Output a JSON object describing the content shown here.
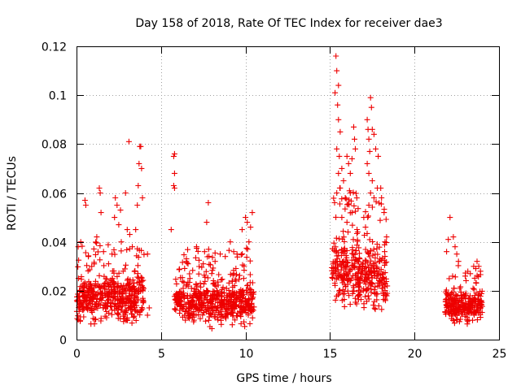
{
  "chart_data": {
    "type": "scatter",
    "title": "Day 158 of 2018, Rate Of TEC Index for receiver dae3",
    "xlabel": "GPS time / hours",
    "ylabel": "ROTI / TECUs",
    "xlim": [
      0,
      25
    ],
    "ylim": [
      0,
      0.12
    ],
    "x_ticks": [
      "0",
      "5",
      "10",
      "15",
      "20",
      "25"
    ],
    "y_ticks": [
      "0",
      "0.02",
      "0.04",
      "0.06",
      "0.08",
      "0.1",
      "0.12"
    ],
    "x_tick_values": [
      0,
      5,
      10,
      15,
      20,
      25
    ],
    "y_tick_values": [
      0,
      0.02,
      0.04,
      0.06,
      0.08,
      0.1,
      0.12
    ],
    "grid": true,
    "marker": "plus",
    "color": "#ee0000",
    "dense_bands": [
      {
        "x_start": 0.0,
        "x_end": 4.0,
        "y_min": 0.004,
        "y_max": 0.028
      },
      {
        "x_start": 5.8,
        "x_end": 6.2,
        "y_min": 0.008,
        "y_max": 0.022
      },
      {
        "x_start": 6.2,
        "x_end": 10.5,
        "y_min": 0.003,
        "y_max": 0.026
      },
      {
        "x_start": 15.1,
        "x_end": 16.6,
        "y_min": 0.01,
        "y_max": 0.045
      },
      {
        "x_start": 16.6,
        "x_end": 18.4,
        "y_min": 0.007,
        "y_max": 0.04
      },
      {
        "x_start": 21.8,
        "x_end": 24.0,
        "y_min": 0.005,
        "y_max": 0.022
      }
    ],
    "points": [
      {
        "x": 0.1,
        "y": 0.038
      },
      {
        "x": 0.25,
        "y": 0.04
      },
      {
        "x": 0.5,
        "y": 0.057
      },
      {
        "x": 0.55,
        "y": 0.055
      },
      {
        "x": 0.7,
        "y": 0.034
      },
      {
        "x": 0.9,
        "y": 0.03
      },
      {
        "x": 1.2,
        "y": 0.042
      },
      {
        "x": 1.35,
        "y": 0.062
      },
      {
        "x": 1.4,
        "y": 0.06
      },
      {
        "x": 1.45,
        "y": 0.052
      },
      {
        "x": 1.6,
        "y": 0.036
      },
      {
        "x": 1.9,
        "y": 0.031
      },
      {
        "x": 2.1,
        "y": 0.035
      },
      {
        "x": 2.25,
        "y": 0.05
      },
      {
        "x": 2.3,
        "y": 0.058
      },
      {
        "x": 2.4,
        "y": 0.055
      },
      {
        "x": 2.5,
        "y": 0.047
      },
      {
        "x": 2.6,
        "y": 0.053
      },
      {
        "x": 2.65,
        "y": 0.04
      },
      {
        "x": 2.9,
        "y": 0.06
      },
      {
        "x": 3.0,
        "y": 0.045
      },
      {
        "x": 3.1,
        "y": 0.081
      },
      {
        "x": 3.15,
        "y": 0.043
      },
      {
        "x": 3.3,
        "y": 0.038
      },
      {
        "x": 3.5,
        "y": 0.045
      },
      {
        "x": 3.6,
        "y": 0.055
      },
      {
        "x": 3.65,
        "y": 0.063
      },
      {
        "x": 3.7,
        "y": 0.072
      },
      {
        "x": 3.75,
        "y": 0.079
      },
      {
        "x": 3.8,
        "y": 0.079
      },
      {
        "x": 3.85,
        "y": 0.07
      },
      {
        "x": 3.9,
        "y": 0.058
      },
      {
        "x": 4.2,
        "y": 0.035
      },
      {
        "x": 4.2,
        "y": 0.01
      },
      {
        "x": 4.3,
        "y": 0.013
      },
      {
        "x": 5.6,
        "y": 0.045
      },
      {
        "x": 5.75,
        "y": 0.075
      },
      {
        "x": 5.8,
        "y": 0.076
      },
      {
        "x": 5.8,
        "y": 0.068
      },
      {
        "x": 5.75,
        "y": 0.063
      },
      {
        "x": 5.8,
        "y": 0.062
      },
      {
        "x": 6.5,
        "y": 0.032
      },
      {
        "x": 6.6,
        "y": 0.031
      },
      {
        "x": 7.1,
        "y": 0.038
      },
      {
        "x": 7.5,
        "y": 0.031
      },
      {
        "x": 7.8,
        "y": 0.056
      },
      {
        "x": 7.7,
        "y": 0.048
      },
      {
        "x": 8.2,
        "y": 0.032
      },
      {
        "x": 8.5,
        "y": 0.035
      },
      {
        "x": 8.8,
        "y": 0.034
      },
      {
        "x": 9.1,
        "y": 0.04
      },
      {
        "x": 9.3,
        "y": 0.036
      },
      {
        "x": 9.5,
        "y": 0.035
      },
      {
        "x": 9.8,
        "y": 0.045
      },
      {
        "x": 10.0,
        "y": 0.05
      },
      {
        "x": 10.1,
        "y": 0.048
      },
      {
        "x": 10.2,
        "y": 0.04
      },
      {
        "x": 10.4,
        "y": 0.052
      },
      {
        "x": 10.3,
        "y": 0.046
      },
      {
        "x": 15.35,
        "y": 0.116
      },
      {
        "x": 15.4,
        "y": 0.11
      },
      {
        "x": 15.5,
        "y": 0.104
      },
      {
        "x": 15.3,
        "y": 0.101
      },
      {
        "x": 15.45,
        "y": 0.096
      },
      {
        "x": 15.5,
        "y": 0.09
      },
      {
        "x": 15.6,
        "y": 0.085
      },
      {
        "x": 15.4,
        "y": 0.078
      },
      {
        "x": 15.55,
        "y": 0.075
      },
      {
        "x": 15.5,
        "y": 0.068
      },
      {
        "x": 15.7,
        "y": 0.07
      },
      {
        "x": 15.6,
        "y": 0.062
      },
      {
        "x": 15.4,
        "y": 0.06
      },
      {
        "x": 15.8,
        "y": 0.065
      },
      {
        "x": 15.9,
        "y": 0.058
      },
      {
        "x": 16.0,
        "y": 0.075
      },
      {
        "x": 16.1,
        "y": 0.072
      },
      {
        "x": 16.2,
        "y": 0.068
      },
      {
        "x": 16.3,
        "y": 0.074
      },
      {
        "x": 16.4,
        "y": 0.087
      },
      {
        "x": 16.45,
        "y": 0.082
      },
      {
        "x": 16.5,
        "y": 0.078
      },
      {
        "x": 16.2,
        "y": 0.06
      },
      {
        "x": 16.3,
        "y": 0.052
      },
      {
        "x": 15.7,
        "y": 0.05
      },
      {
        "x": 16.0,
        "y": 0.048
      },
      {
        "x": 17.2,
        "y": 0.09
      },
      {
        "x": 17.25,
        "y": 0.086
      },
      {
        "x": 17.3,
        "y": 0.082
      },
      {
        "x": 17.35,
        "y": 0.077
      },
      {
        "x": 17.4,
        "y": 0.099
      },
      {
        "x": 17.45,
        "y": 0.095
      },
      {
        "x": 17.5,
        "y": 0.086
      },
      {
        "x": 17.2,
        "y": 0.072
      },
      {
        "x": 17.3,
        "y": 0.068
      },
      {
        "x": 17.6,
        "y": 0.084
      },
      {
        "x": 17.7,
        "y": 0.078
      },
      {
        "x": 17.5,
        "y": 0.065
      },
      {
        "x": 17.4,
        "y": 0.06
      },
      {
        "x": 17.6,
        "y": 0.058
      },
      {
        "x": 17.8,
        "y": 0.062
      },
      {
        "x": 17.85,
        "y": 0.075
      },
      {
        "x": 18.0,
        "y": 0.062
      },
      {
        "x": 18.05,
        "y": 0.058
      },
      {
        "x": 18.2,
        "y": 0.052
      },
      {
        "x": 18.25,
        "y": 0.04
      },
      {
        "x": 18.35,
        "y": 0.042
      },
      {
        "x": 17.3,
        "y": 0.055
      },
      {
        "x": 17.0,
        "y": 0.05
      },
      {
        "x": 17.1,
        "y": 0.046
      },
      {
        "x": 22.1,
        "y": 0.05
      },
      {
        "x": 22.0,
        "y": 0.041
      },
      {
        "x": 22.3,
        "y": 0.042
      },
      {
        "x": 22.4,
        "y": 0.038
      },
      {
        "x": 22.5,
        "y": 0.035
      },
      {
        "x": 21.9,
        "y": 0.036
      },
      {
        "x": 22.6,
        "y": 0.032
      },
      {
        "x": 23.0,
        "y": 0.026
      },
      {
        "x": 23.3,
        "y": 0.027
      },
      {
        "x": 23.5,
        "y": 0.03
      },
      {
        "x": 23.7,
        "y": 0.032
      },
      {
        "x": 23.8,
        "y": 0.03
      },
      {
        "x": 23.9,
        "y": 0.028
      }
    ]
  }
}
